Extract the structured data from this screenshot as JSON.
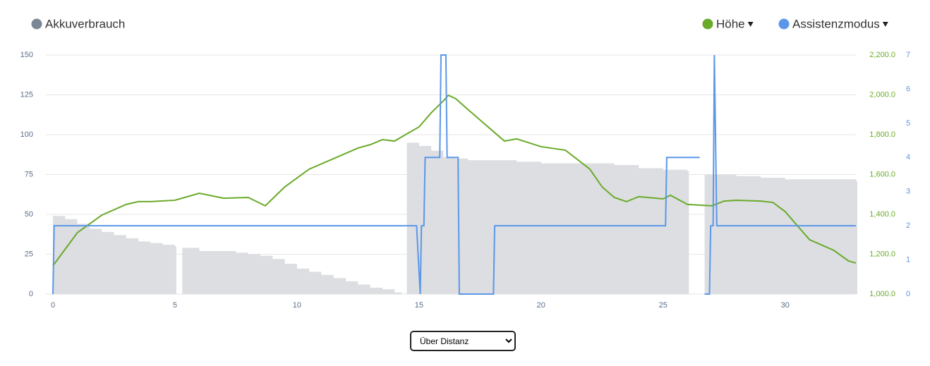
{
  "chart_data": {
    "type": "combo",
    "x_select": "Über Distanz",
    "xlim": [
      0,
      32.9
    ],
    "xticks": [
      0,
      5,
      10,
      15,
      20,
      25,
      30
    ],
    "ylim": [
      0,
      150
    ],
    "yticks": [
      0,
      25,
      50,
      75,
      100,
      125,
      150
    ],
    "y2lim": [
      1000,
      2200
    ],
    "y2ticks": [
      {
        "value": 1000,
        "label": "1,000.0"
      },
      {
        "value": 1200,
        "label": "1,200.0"
      },
      {
        "value": 1400,
        "label": "1,400.0"
      },
      {
        "value": 1600,
        "label": "1,600.0"
      },
      {
        "value": 1800,
        "label": "1,800.0"
      },
      {
        "value": 2000,
        "label": "2,000.0"
      },
      {
        "value": 2200,
        "label": "2,200.0"
      }
    ],
    "y3lim": [
      0,
      7
    ],
    "y3ticks": [
      0,
      1,
      2,
      3,
      4,
      5,
      6,
      7
    ],
    "grid": true,
    "series": [
      {
        "name": "Akkuverbrauch",
        "type": "area",
        "color": "#dcdee2",
        "legend_color": "#7b8797",
        "axis": "y",
        "x": [
          0,
          0.5,
          1,
          1.5,
          2,
          2.5,
          3,
          3.5,
          4,
          4.5,
          5,
          5.1,
          5.3,
          6,
          7,
          7.5,
          8,
          8.5,
          9,
          9.5,
          10,
          10.5,
          11,
          11.5,
          12,
          12.5,
          13,
          13.5,
          14,
          14.3,
          14.5,
          15,
          15.5,
          16,
          16.5,
          17,
          18,
          19,
          20,
          21,
          22,
          23,
          24,
          25,
          26,
          26.5,
          26.7,
          27,
          28,
          29,
          30,
          31,
          32,
          32.9
        ],
        "values": [
          49,
          47,
          44,
          41,
          39,
          37,
          35,
          33,
          32,
          31,
          30,
          null,
          29,
          27,
          27,
          26,
          25,
          24,
          22,
          19,
          16,
          14,
          12,
          10,
          8,
          6,
          4,
          3,
          1,
          0,
          95,
          93,
          90,
          86,
          85,
          84,
          84,
          83,
          82,
          82,
          82,
          81,
          79,
          78,
          77,
          null,
          75,
          75,
          74,
          73,
          72,
          72,
          72,
          71
        ]
      },
      {
        "name": "Höhe",
        "type": "line",
        "color": "#6aaa2a",
        "axis": "y2",
        "x": [
          0,
          1,
          2,
          3,
          3.5,
          4,
          5,
          6,
          7,
          8,
          8.7,
          9.5,
          10.5,
          11.5,
          12.5,
          13,
          13.5,
          14,
          14.5,
          15,
          15.5,
          16,
          16.2,
          16.5,
          17,
          17.5,
          18,
          18.5,
          19,
          20,
          21,
          22,
          22.5,
          23,
          23.5,
          24,
          25,
          25.3,
          26,
          27,
          27.5,
          28,
          29,
          29.5,
          30,
          31,
          32,
          32.6,
          32.9
        ],
        "values": [
          1142,
          1308,
          1396,
          1450,
          1464,
          1464,
          1471,
          1506,
          1481,
          1485,
          1443,
          1538,
          1627,
          1680,
          1733,
          1750,
          1775,
          1768,
          1804,
          1839,
          1910,
          1970,
          1998,
          1981,
          1927,
          1874,
          1821,
          1768,
          1779,
          1740,
          1722,
          1627,
          1538,
          1485,
          1464,
          1489,
          1478,
          1496,
          1450,
          1443,
          1467,
          1471,
          1467,
          1460,
          1414,
          1273,
          1219,
          1166,
          1156
        ]
      },
      {
        "name": "Assistenzmodus",
        "type": "line",
        "color": "#5b97e8",
        "axis": "y3",
        "x": [
          0,
          0.05,
          14.9,
          15.05,
          15.1,
          15.2,
          15.25,
          15.85,
          15.9,
          16.1,
          16.15,
          16.6,
          16.65,
          18.05,
          18.1,
          25.1,
          25.15,
          26.5,
          26.6,
          26.7,
          26.9,
          26.95,
          27.05,
          27.1,
          27.2,
          32.9
        ],
        "values": [
          0,
          2,
          2,
          0,
          2,
          2,
          4,
          4,
          7,
          7,
          4,
          4,
          0,
          0,
          2,
          2,
          4,
          4,
          null,
          0,
          0,
          2,
          2,
          7,
          2,
          2
        ]
      }
    ]
  }
}
